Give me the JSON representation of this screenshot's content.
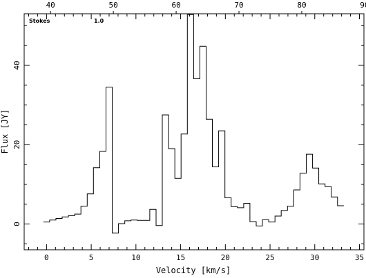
{
  "chart_data": {
    "type": "line",
    "step": true,
    "xlabel": "Velocity [km/s]",
    "ylabel": "Flux [JY]",
    "xlim": [
      -2.5,
      35.5
    ],
    "ylim": [
      -6.5,
      53
    ],
    "x2lim": [
      35.8,
      89.9
    ],
    "xticks": [
      0,
      5,
      10,
      15,
      20,
      25,
      30,
      35
    ],
    "yticks": [
      0,
      20,
      40
    ],
    "x2ticks": [
      40,
      50,
      60,
      70,
      80,
      90
    ],
    "annotations": [
      {
        "label": "Stokes",
        "value": "1.0"
      }
    ],
    "series": [
      {
        "x": [
          0.0,
          0.7,
          1.4,
          2.1,
          2.8,
          3.5,
          4.2,
          4.9,
          5.6,
          6.3,
          7.0,
          7.7,
          8.4,
          9.1,
          9.8,
          10.5,
          11.2,
          11.9,
          12.6,
          13.3,
          14.0,
          14.7,
          15.4,
          16.1,
          16.8,
          17.5,
          18.2,
          18.9,
          19.6,
          20.3,
          21.0,
          21.7,
          22.4,
          23.1,
          23.8,
          24.5,
          25.2,
          25.9,
          26.6,
          27.3,
          28.0,
          28.7,
          29.4,
          30.1,
          30.8,
          31.5,
          32.2,
          32.9
        ],
        "values": [
          0.5,
          1.0,
          1.4,
          1.8,
          2.1,
          2.5,
          4.5,
          7.6,
          14.2,
          18.3,
          34.5,
          -2.3,
          0.1,
          0.8,
          1.0,
          0.9,
          0.9,
          3.7,
          -0.4,
          27.5,
          19.0,
          11.5,
          22.7,
          52.8,
          36.6,
          44.8,
          26.4,
          14.4,
          23.5,
          6.6,
          4.4,
          4.1,
          5.2,
          0.6,
          -0.5,
          1.1,
          0.5,
          2.0,
          3.4,
          4.5,
          8.6,
          12.8,
          17.6,
          14.1,
          10.1,
          9.4,
          6.8,
          4.6
        ]
      }
    ]
  }
}
